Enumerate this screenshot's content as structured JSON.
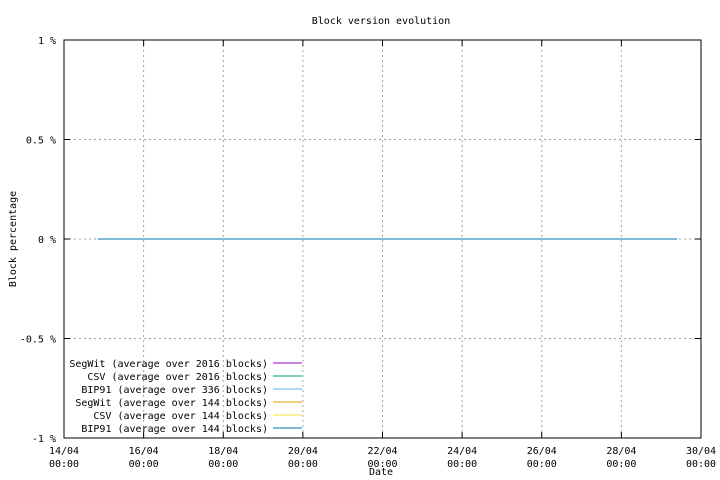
{
  "chart_data": {
    "type": "line",
    "title": "Block version evolution",
    "x_label": "Date",
    "y_label": "Block percentage",
    "xlim": [
      0,
      16
    ],
    "xticks": [
      {
        "value": 0,
        "label": "14/04\n00:00"
      },
      {
        "value": 2,
        "label": "16/04\n00:00"
      },
      {
        "value": 4,
        "label": "18/04\n00:00"
      },
      {
        "value": 6,
        "label": "20/04\n00:00"
      },
      {
        "value": 8,
        "label": "22/04\n00:00"
      },
      {
        "value": 10,
        "label": "24/04\n00:00"
      },
      {
        "value": 12,
        "label": "26/04\n00:00"
      },
      {
        "value": 14,
        "label": "28/04\n00:00"
      },
      {
        "value": 16,
        "label": "30/04\n00:00"
      }
    ],
    "ylim": [
      -1,
      1
    ],
    "yticks": [
      {
        "value": -1,
        "label": "-1 %"
      },
      {
        "value": -0.5,
        "label": "-0.5 %"
      },
      {
        "value": 0,
        "label": "0 %"
      },
      {
        "value": 0.5,
        "label": "0.5 %"
      },
      {
        "value": 1,
        "label": "1 %"
      }
    ],
    "grid": true,
    "legend": "lower left",
    "series": [
      {
        "name": "SegWit (average over 2016 blocks)",
        "color": "#9400d3",
        "x": [
          0.85,
          15.4
        ],
        "values": [
          0,
          0
        ]
      },
      {
        "name": "CSV (average over 2016 blocks)",
        "color": "#009e73",
        "x": [
          0.85,
          15.4
        ],
        "values": [
          0,
          0
        ]
      },
      {
        "name": "BIP91 (average over 336 blocks)",
        "color": "#56b4e9",
        "x": [
          0.85,
          15.4
        ],
        "values": [
          0,
          0
        ]
      },
      {
        "name": "SegWit (average over 144 blocks)",
        "color": "#e69f00",
        "x": [
          0.85,
          15.4
        ],
        "values": [
          0,
          0
        ]
      },
      {
        "name": "CSV (average over 144 blocks)",
        "color": "#f0e442",
        "x": [
          0.85,
          15.4
        ],
        "values": [
          0,
          0
        ]
      },
      {
        "name": "BIP91 (average over 144 blocks)",
        "color": "#0072b2",
        "x": [
          0.85,
          15.4
        ],
        "values": [
          0,
          0
        ]
      }
    ]
  }
}
